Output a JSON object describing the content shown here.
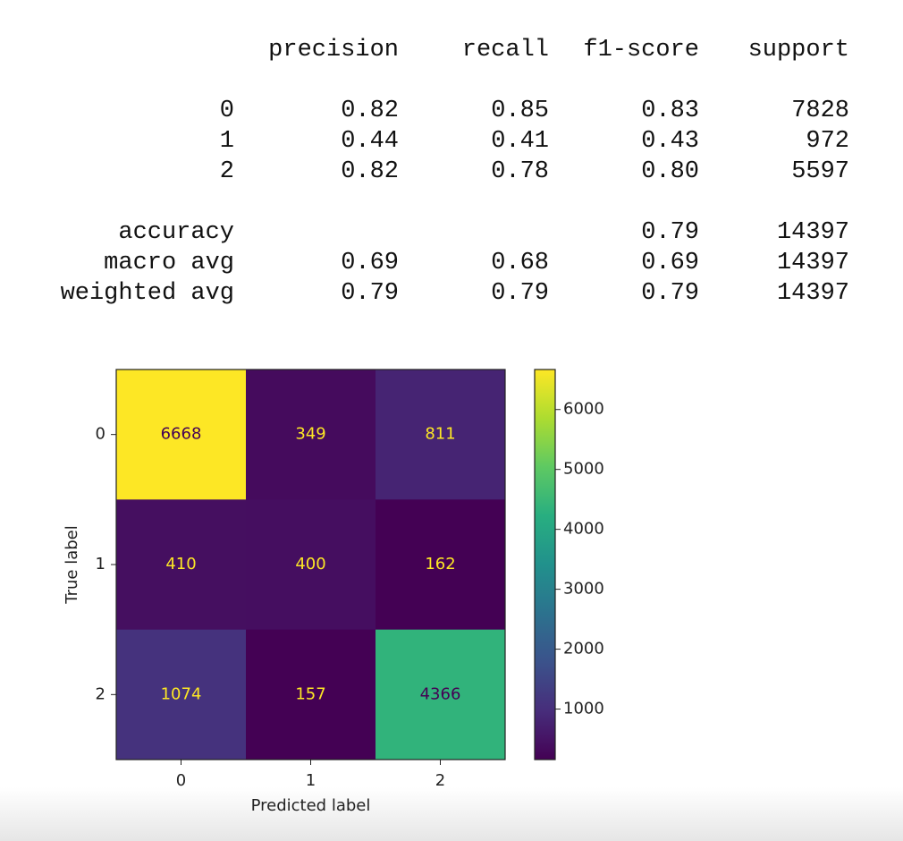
{
  "report": {
    "columns": [
      "precision",
      "recall",
      "f1-score",
      "support"
    ],
    "rows": [
      {
        "label": "0",
        "values": [
          "0.82",
          "0.85",
          "0.83",
          "7828"
        ]
      },
      {
        "label": "1",
        "values": [
          "0.44",
          "0.41",
          "0.43",
          "972"
        ]
      },
      {
        "label": "2",
        "values": [
          "0.82",
          "0.78",
          "0.80",
          "5597"
        ]
      },
      {
        "label": "accuracy",
        "values": [
          null,
          null,
          "0.79",
          "14397"
        ]
      },
      {
        "label": "macro avg",
        "values": [
          "0.69",
          "0.68",
          "0.69",
          "14397"
        ]
      },
      {
        "label": "weighted avg",
        "values": [
          "0.79",
          "0.79",
          "0.79",
          "14397"
        ]
      }
    ]
  },
  "chart_data": {
    "type": "heatmap",
    "xlabel": "Predicted label",
    "ylabel": "True label",
    "x_categories": [
      "0",
      "1",
      "2"
    ],
    "y_categories": [
      "0",
      "1",
      "2"
    ],
    "values": [
      [
        6668,
        349,
        811
      ],
      [
        410,
        400,
        162
      ],
      [
        1074,
        157,
        4366
      ]
    ],
    "colormap": "viridis",
    "clim": [
      157,
      6668
    ],
    "cticks": [
      1000,
      2000,
      3000,
      4000,
      5000,
      6000
    ]
  }
}
